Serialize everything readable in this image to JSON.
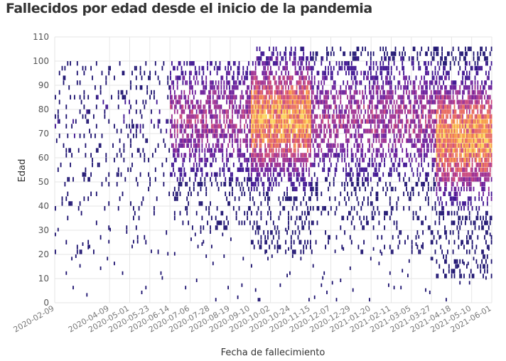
{
  "title": "Fallecidos por edad desde el inicio de la pandemia",
  "chart_data": {
    "type": "heatmap",
    "title": "Fallecidos por edad desde el inicio de la pandemia",
    "xlabel": "Fecha de fallecimiento",
    "ylabel": "Edad",
    "xlim": [
      "2020-02-09",
      "2021-06-01"
    ],
    "ylim": [
      0,
      110
    ],
    "yticks": [
      0,
      10,
      20,
      30,
      40,
      50,
      60,
      70,
      80,
      90,
      100,
      110
    ],
    "xticks": [
      "2020-02-09",
      "2020-04-09",
      "2020-05-01",
      "2020-05-23",
      "2020-06-14",
      "2020-07-06",
      "2020-07-28",
      "2020-08-19",
      "2020-09-10",
      "2020-10-02",
      "2020-10-24",
      "2020-11-15",
      "2020-12-07",
      "2020-12-29",
      "2021-01-20",
      "2021-02-11",
      "2021-03-05",
      "2021-03-27",
      "2021-04-18",
      "2021-05-10",
      "2021-06-01"
    ],
    "grid": true,
    "colorscale": [
      "#1a0f6e",
      "#3b0f8f",
      "#6a1b9a",
      "#9c2b8f",
      "#c8437a",
      "#e8675c",
      "#f89a45",
      "#fcd35a"
    ],
    "density_periods": [
      {
        "start": "2020-02-09",
        "end": "2020-06-14",
        "level": "sparse",
        "age_range": [
          20,
          100
        ]
      },
      {
        "start": "2020-06-14",
        "end": "2020-09-10",
        "level": "medium",
        "age_range": [
          30,
          100
        ]
      },
      {
        "start": "2020-09-10",
        "end": "2020-11-15",
        "level": "high",
        "age_range": [
          20,
          105
        ],
        "peak_age": 75
      },
      {
        "start": "2020-11-15",
        "end": "2021-04-01",
        "level": "medium",
        "age_range": [
          20,
          105
        ]
      },
      {
        "start": "2021-04-01",
        "end": "2021-06-01",
        "level": "high",
        "age_range": [
          10,
          105
        ],
        "peak_age": 67
      }
    ]
  }
}
